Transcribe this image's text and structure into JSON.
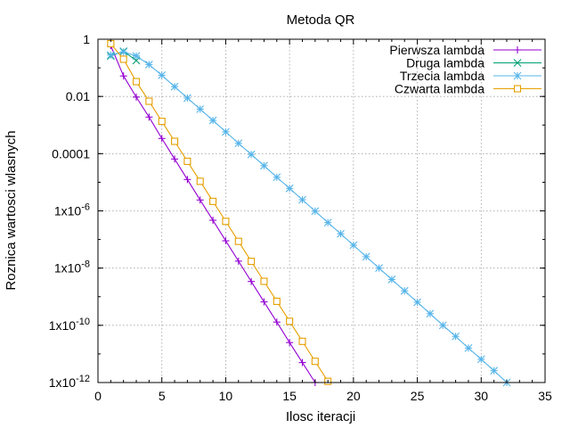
{
  "chart_data": {
    "type": "line",
    "title": "Metoda QR",
    "xlabel": "Ilosc iteracji",
    "ylabel": "Roznica wartosci wlasnych",
    "xlim": [
      0,
      35
    ],
    "ylim": [
      1e-12,
      1
    ],
    "yscale": "log",
    "grid": true,
    "legend_position": "top-right",
    "x_ticks": [
      0,
      5,
      10,
      15,
      20,
      25,
      30,
      35
    ],
    "y_ticks": [
      {
        "value": 1,
        "mantissa": "1",
        "exp": ""
      },
      {
        "value": 0.01,
        "mantissa": "0.01",
        "exp": ""
      },
      {
        "value": 0.0001,
        "mantissa": "0.0001",
        "exp": ""
      },
      {
        "value": 1e-06,
        "mantissa": "1x10",
        "exp": "-6"
      },
      {
        "value": 1e-08,
        "mantissa": "1x10",
        "exp": "-8"
      },
      {
        "value": 1e-10,
        "mantissa": "1x10",
        "exp": "-10"
      },
      {
        "value": 1e-12,
        "mantissa": "1x10",
        "exp": "-12"
      }
    ],
    "series": [
      {
        "name": "Pierwsza lambda",
        "color": "#9400d3",
        "marker": "plus",
        "x": [
          1,
          2,
          3,
          4,
          5,
          6,
          7,
          8,
          9,
          10,
          11,
          12,
          13,
          14,
          15,
          16,
          17
        ],
        "y": [
          0.6,
          0.052,
          0.0095,
          0.0019,
          0.00034,
          6.5e-05,
          1.25e-05,
          2.4e-06,
          4.7e-07,
          9e-08,
          1.75e-08,
          3.4e-09,
          6.6e-10,
          1.3e-10,
          2.5e-11,
          5e-12,
          1e-12
        ]
      },
      {
        "name": "Druga lambda",
        "color": "#009e73",
        "marker": "cross",
        "x": [
          1,
          2,
          3
        ],
        "y": [
          0.26,
          0.38,
          0.18
        ]
      },
      {
        "name": "Trzecia lambda",
        "color": "#56b4e9",
        "marker": "star",
        "x": [
          1,
          2,
          3,
          4,
          5,
          6,
          7,
          8,
          9,
          10,
          11,
          12,
          13,
          14,
          15,
          16,
          17,
          18,
          19,
          20,
          21,
          22,
          23,
          24,
          25,
          26,
          27,
          28,
          29,
          30,
          31,
          32
        ],
        "y": [
          0.28,
          0.36,
          0.26,
          0.13,
          0.055,
          0.022,
          0.0088,
          0.0036,
          0.00145,
          0.00058,
          0.00023,
          9.4e-05,
          3.8e-05,
          1.5e-05,
          6.1e-06,
          2.45e-06,
          9.8e-07,
          3.9e-07,
          1.58e-07,
          6.3e-08,
          2.5e-08,
          1e-08,
          4e-09,
          1.6e-09,
          6.4e-10,
          2.55e-10,
          1e-10,
          4.1e-11,
          1.6e-11,
          6.5e-12,
          2.6e-12,
          1e-12
        ]
      },
      {
        "name": "Czwarta lambda",
        "color": "#e69f00",
        "marker": "square",
        "x": [
          1,
          2,
          3,
          4,
          5,
          6,
          7,
          8,
          9,
          10,
          11,
          12,
          13,
          14,
          15,
          16,
          17,
          18
        ],
        "y": [
          0.7,
          0.2,
          0.033,
          0.0068,
          0.00135,
          0.00027,
          5.4e-05,
          1.08e-05,
          2.15e-06,
          4.3e-07,
          8.6e-08,
          1.72e-08,
          3.45e-09,
          6.9e-10,
          1.38e-10,
          2.75e-11,
          5.5e-12,
          1.1e-12
        ]
      }
    ]
  }
}
